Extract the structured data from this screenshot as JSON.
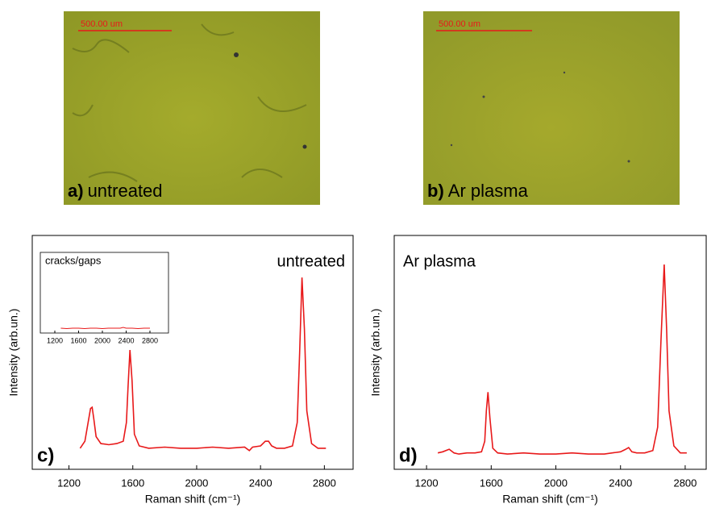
{
  "images": [
    {
      "label": "a)",
      "caption": "untreated",
      "scale_bar": "500.00 um"
    },
    {
      "label": "b)",
      "caption": "Ar plasma",
      "scale_bar": "500.00 um"
    }
  ],
  "chart_data": [
    {
      "type": "line",
      "panel_label": "c)",
      "annotation": "untreated",
      "x_label": "Raman shift (cm⁻¹)",
      "y_label": "Intensity (arb.un.)",
      "xlim": [
        970,
        2980
      ],
      "ylim": [
        0,
        100
      ],
      "xticks": [
        1200,
        1600,
        2000,
        2400,
        2800
      ],
      "series": [
        {
          "color": "#e8191a",
          "x": [
            1270,
            1300,
            1320,
            1335,
            1345,
            1355,
            1370,
            1400,
            1450,
            1500,
            1540,
            1560,
            1570,
            1582,
            1595,
            1610,
            1640,
            1700,
            1800,
            1900,
            2000,
            2100,
            2200,
            2300,
            2330,
            2350,
            2400,
            2430,
            2450,
            2470,
            2500,
            2550,
            2600,
            2630,
            2645,
            2660,
            2675,
            2690,
            2720,
            2760,
            2810
          ],
          "values": [
            9,
            12,
            20,
            26,
            26.5,
            22,
            14,
            11,
            10.5,
            11,
            12,
            20,
            35,
            51,
            38,
            15,
            10,
            9,
            9.5,
            9,
            9,
            9.5,
            9,
            9.5,
            8,
            9.5,
            10,
            12,
            12,
            10,
            9,
            9,
            10,
            20,
            50,
            82,
            60,
            25,
            11,
            9,
            9
          ]
        }
      ]
    },
    {
      "type": "line",
      "panel_label": "d)",
      "annotation": "Ar plasma",
      "x_label": "Raman shift (cm⁻¹)",
      "y_label": "Intensity (arb.un.)",
      "xlim": [
        1000,
        2930
      ],
      "ylim": [
        0,
        100
      ],
      "xticks": [
        1200,
        1600,
        2000,
        2400,
        2800
      ],
      "series": [
        {
          "color": "#e8191a",
          "x": [
            1270,
            1300,
            1340,
            1370,
            1400,
            1450,
            1500,
            1540,
            1560,
            1570,
            1580,
            1592,
            1610,
            1640,
            1700,
            1800,
            1900,
            2000,
            2100,
            2200,
            2300,
            2400,
            2430,
            2450,
            2470,
            2500,
            2550,
            2600,
            2630,
            2650,
            2670,
            2685,
            2700,
            2730,
            2770,
            2810
          ],
          "values": [
            7,
            7.5,
            8.6,
            7,
            6.5,
            7,
            7,
            7.5,
            12,
            25,
            33,
            22,
            9,
            7,
            6.5,
            7,
            6.5,
            6.5,
            7,
            6.5,
            6.5,
            7.5,
            8.5,
            9.3,
            7.5,
            7,
            7,
            8,
            18,
            55,
            87.6,
            60,
            25,
            10,
            7,
            7
          ]
        }
      ]
    },
    {
      "type": "line",
      "annotation": "cracks/gaps",
      "xlim": [
        956,
        3112
      ],
      "ylim": [
        0,
        100
      ],
      "xticks": [
        1200,
        1600,
        2000,
        2400,
        2800
      ],
      "series": [
        {
          "color": "#e8191a",
          "x": [
            1300,
            1400,
            1500,
            1600,
            1700,
            1800,
            1900,
            2000,
            2100,
            2200,
            2300,
            2350,
            2400,
            2500,
            2600,
            2700,
            2800
          ],
          "values": [
            6,
            5.5,
            6,
            6,
            5.5,
            6,
            6,
            5.5,
            6,
            6,
            6,
            7,
            6,
            6,
            5.5,
            6,
            6
          ]
        }
      ]
    }
  ]
}
